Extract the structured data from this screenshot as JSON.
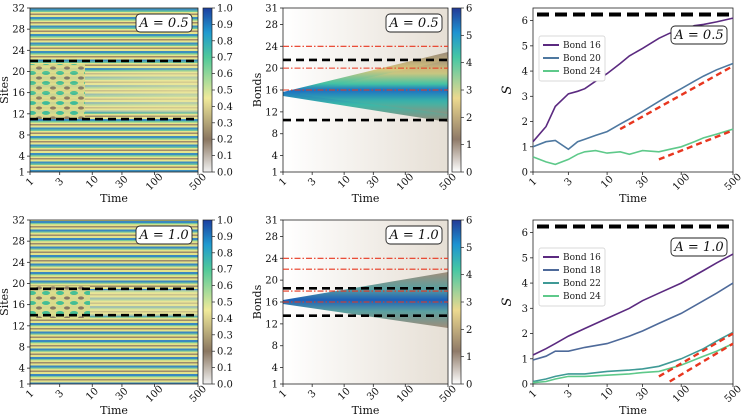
{
  "chart_data": [
    {
      "panel": "top-left",
      "type": "heatmap",
      "xlabel": "Time",
      "ylabel": "Sites",
      "xticks": [
        "1",
        "3",
        "10",
        "30",
        "100",
        "500"
      ],
      "yticks": [
        "1",
        "4",
        "8",
        "12",
        "16",
        "20",
        "24",
        "28",
        "32"
      ],
      "ylim": [
        1,
        32
      ],
      "annotation": "A = 0.5",
      "dashed_lines_y": [
        11,
        22
      ],
      "colorbar": {
        "range": [
          0.0,
          1.0
        ],
        "ticks": [
          "0.0",
          "0.1",
          "0.2",
          "0.3",
          "0.4",
          "0.5",
          "0.6",
          "0.7",
          "0.8",
          "0.9",
          "1.0"
        ]
      }
    },
    {
      "panel": "top-middle",
      "type": "heatmap",
      "xlabel": "Time",
      "ylabel": "Bonds",
      "xticks": [
        "1",
        "3",
        "10",
        "30",
        "100",
        "500"
      ],
      "yticks": [
        "1",
        "4",
        "8",
        "12",
        "16",
        "20",
        "24",
        "28",
        "31"
      ],
      "ylim": [
        1,
        31
      ],
      "annotation": "A = 0.5",
      "dashed_lines_y": [
        10.5,
        21.5
      ],
      "dashdot_lines_y": [
        16,
        20,
        24
      ],
      "colorbar": {
        "range": [
          0,
          6
        ],
        "ticks": [
          "0",
          "1",
          "2",
          "3",
          "4",
          "5",
          "6"
        ]
      }
    },
    {
      "panel": "top-right",
      "type": "line",
      "xlabel": "Time",
      "ylabel": "S",
      "xticks": [
        "1",
        "3",
        "10",
        "30",
        "100",
        "500"
      ],
      "yticks": [
        "0",
        "1",
        "2",
        "3",
        "4",
        "5",
        "6"
      ],
      "ylim": [
        0,
        6.5
      ],
      "annotation": "A = 0.5",
      "series": [
        {
          "name": "Bond 16",
          "x": [
            1,
            1.5,
            2,
            3,
            4,
            5,
            7,
            10,
            15,
            20,
            30,
            50,
            70,
            100,
            150,
            200,
            300,
            500
          ],
          "y": [
            1.2,
            1.8,
            2.6,
            3.1,
            3.2,
            3.3,
            3.6,
            3.9,
            4.3,
            4.6,
            4.9,
            5.3,
            5.5,
            5.6,
            5.8,
            5.85,
            5.95,
            6.1
          ]
        },
        {
          "name": "Bond 20",
          "x": [
            1,
            1.5,
            2,
            3,
            4,
            5,
            7,
            10,
            15,
            20,
            30,
            50,
            70,
            100,
            150,
            200,
            300,
            500
          ],
          "y": [
            1.0,
            1.2,
            1.25,
            0.9,
            1.2,
            1.3,
            1.45,
            1.6,
            1.9,
            2.1,
            2.4,
            2.8,
            3.05,
            3.3,
            3.6,
            3.8,
            4.05,
            4.3
          ]
        },
        {
          "name": "Bond 24",
          "x": [
            1,
            1.5,
            2,
            3,
            4,
            5,
            7,
            10,
            15,
            20,
            30,
            50,
            70,
            100,
            150,
            200,
            300,
            500
          ],
          "y": [
            0.6,
            0.4,
            0.3,
            0.5,
            0.7,
            0.8,
            0.85,
            0.75,
            0.8,
            0.7,
            0.85,
            0.8,
            0.9,
            1.0,
            1.2,
            1.35,
            1.5,
            1.7
          ]
        }
      ],
      "reference_line_y": 6.24,
      "fit_lines": [
        {
          "x": [
            15,
            500
          ],
          "y": [
            1.7,
            4.2
          ]
        },
        {
          "x": [
            50,
            500
          ],
          "y": [
            0.5,
            1.65
          ]
        }
      ]
    },
    {
      "panel": "bottom-left",
      "type": "heatmap",
      "xlabel": "Time",
      "ylabel": "Sites",
      "xticks": [
        "1",
        "3",
        "10",
        "30",
        "100",
        "500"
      ],
      "yticks": [
        "1",
        "4",
        "8",
        "12",
        "16",
        "20",
        "24",
        "28",
        "32"
      ],
      "ylim": [
        1,
        32
      ],
      "annotation": "A = 1.0",
      "dashed_lines_y": [
        14,
        19
      ],
      "colorbar": {
        "range": [
          0.0,
          1.0
        ],
        "ticks": [
          "0.0",
          "0.1",
          "0.2",
          "0.3",
          "0.4",
          "0.5",
          "0.6",
          "0.7",
          "0.8",
          "0.9",
          "1.0"
        ]
      }
    },
    {
      "panel": "bottom-middle",
      "type": "heatmap",
      "xlabel": "Time",
      "ylabel": "Bonds",
      "xticks": [
        "1",
        "3",
        "10",
        "30",
        "100",
        "500"
      ],
      "yticks": [
        "1",
        "4",
        "8",
        "12",
        "16",
        "20",
        "24",
        "28",
        "31"
      ],
      "ylim": [
        1,
        31
      ],
      "annotation": "A = 1.0",
      "dashed_lines_y": [
        13.5,
        18.5
      ],
      "dashdot_lines_y": [
        16,
        18,
        22,
        24
      ],
      "colorbar": {
        "range": [
          0,
          6
        ],
        "ticks": [
          "0",
          "1",
          "2",
          "3",
          "4",
          "5",
          "6"
        ]
      }
    },
    {
      "panel": "bottom-right",
      "type": "line",
      "xlabel": "Time",
      "ylabel": "S",
      "xticks": [
        "1",
        "3",
        "10",
        "30",
        "100",
        "500"
      ],
      "yticks": [
        "0",
        "1",
        "2",
        "3",
        "4",
        "5",
        "6"
      ],
      "ylim": [
        0,
        6.5
      ],
      "annotation": "A = 1.0",
      "series": [
        {
          "name": "Bond 16",
          "x": [
            1,
            1.5,
            2,
            3,
            5,
            10,
            20,
            30,
            50,
            100,
            200,
            300,
            500
          ],
          "y": [
            1.15,
            1.4,
            1.6,
            1.9,
            2.2,
            2.6,
            3.0,
            3.3,
            3.6,
            4.0,
            4.5,
            4.8,
            5.15
          ]
        },
        {
          "name": "Bond 18",
          "x": [
            1,
            1.5,
            2,
            3,
            5,
            10,
            20,
            30,
            50,
            100,
            200,
            300,
            500
          ],
          "y": [
            0.95,
            1.1,
            1.3,
            1.3,
            1.45,
            1.6,
            1.9,
            2.1,
            2.4,
            2.8,
            3.3,
            3.6,
            4.0
          ]
        },
        {
          "name": "Bond 22",
          "x": [
            1,
            1.5,
            2,
            3,
            5,
            10,
            20,
            30,
            50,
            100,
            200,
            300,
            500
          ],
          "y": [
            0.1,
            0.2,
            0.3,
            0.4,
            0.4,
            0.5,
            0.55,
            0.6,
            0.7,
            1.0,
            1.4,
            1.7,
            2.05
          ]
        },
        {
          "name": "Bond 24",
          "x": [
            1,
            1.5,
            2,
            3,
            5,
            10,
            20,
            30,
            50,
            100,
            200,
            300,
            500
          ],
          "y": [
            0.05,
            0.1,
            0.2,
            0.3,
            0.3,
            0.35,
            0.4,
            0.45,
            0.5,
            0.75,
            1.1,
            1.3,
            1.6
          ]
        }
      ],
      "reference_line_y": 6.24,
      "fit_lines": [
        {
          "x": [
            50,
            500
          ],
          "y": [
            0.3,
            2.0
          ]
        },
        {
          "x": [
            70,
            500
          ],
          "y": [
            0.1,
            1.6
          ]
        }
      ]
    }
  ],
  "colors": {
    "bond16": "#5b2a80",
    "bond18": "#4e6a9a",
    "bond20": "#4e78a0",
    "bond22": "#3f9a96",
    "bond24": "#5ec98a",
    "fit": "#e8361f",
    "dashed": "#000000",
    "dashdot": "#e8361f"
  }
}
